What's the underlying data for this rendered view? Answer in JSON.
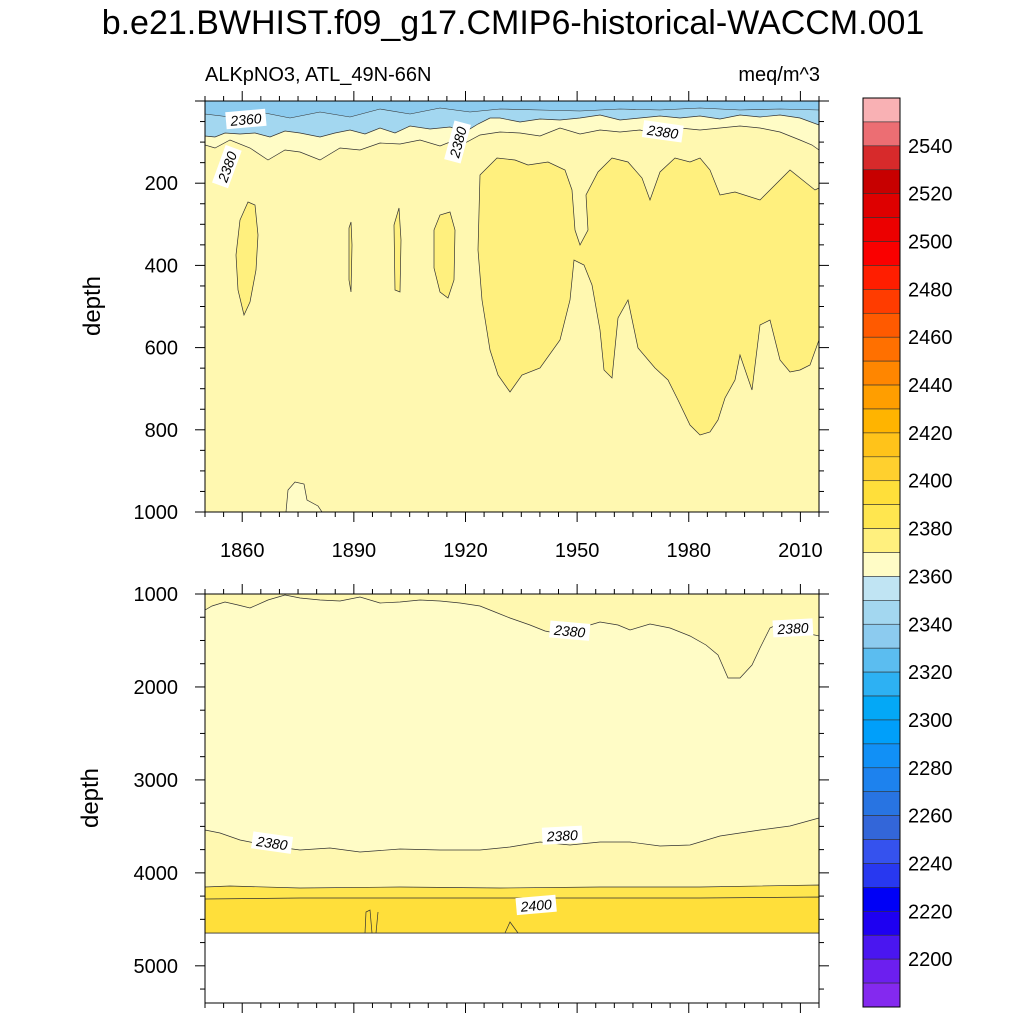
{
  "figure": {
    "title": "b.e21.BWHIST.f09_g17.CMIP6-historical-WACCM.001",
    "variable": "ALKpNO3, ATL_49N-66N",
    "units": "meq/m^3"
  },
  "chart_data": [
    {
      "type": "contour",
      "panel": "upper",
      "title": "ALKpNO3, ATL_49N-66N",
      "units": "meq/m^3",
      "xlabel": "",
      "ylabel": "depth",
      "xlim": [
        1850,
        2015
      ],
      "ylim": [
        1000,
        0
      ],
      "xticks": [
        1860,
        1890,
        1920,
        1950,
        1980,
        2010
      ],
      "yticks": [
        200,
        400,
        600,
        800,
        1000
      ],
      "contour_labels": [
        {
          "text": "2360",
          "x": 1861,
          "y": 45,
          "angle": -5
        },
        {
          "text": "2380",
          "x": 1856,
          "y": 160,
          "angle": -70
        },
        {
          "text": "2380",
          "x": 1918,
          "y": 100,
          "angle": -75
        },
        {
          "text": "2380",
          "x": 1973,
          "y": 75,
          "angle": 8
        }
      ],
      "regions": [
        {
          "level": "2360-2370",
          "description": "thin surface layer 0-60 m"
        },
        {
          "level": "2380-2390",
          "description": "bulk of 100-1000 m"
        },
        {
          "level": "2390-2400",
          "description": "patches 1925-1950 and 1956-2015, 200-800 m"
        }
      ]
    },
    {
      "type": "contour",
      "panel": "lower",
      "xlabel": "",
      "ylabel": "depth",
      "xlim": [
        1850,
        2015
      ],
      "ylim": [
        5400,
        1000
      ],
      "xticks": [
        1860,
        1890,
        1920,
        1950,
        1980,
        2010
      ],
      "yticks": [
        1000,
        2000,
        3000,
        4000,
        5000
      ],
      "contour_labels": [
        {
          "text": "2380",
          "x": 1948,
          "y": 1400,
          "angle": 5
        },
        {
          "text": "2380",
          "x": 2008,
          "y": 1370,
          "angle": -3
        },
        {
          "text": "2380",
          "x": 1868,
          "y": 3680,
          "angle": 8
        },
        {
          "text": "2380",
          "x": 1946,
          "y": 3600,
          "angle": -3
        },
        {
          "text": "2400",
          "x": 1939,
          "y": 4350,
          "angle": -5
        }
      ],
      "regions": [
        {
          "level": "2370-2380",
          "description": "1000-3700 m"
        },
        {
          "level": "2380-2390",
          "description": "3700-4150 m and near 1000 m"
        },
        {
          "level": "2400-2410",
          "description": "4250-4620 m"
        }
      ],
      "missing_below": 4620
    }
  ],
  "colorbar": {
    "labels": [
      "2540",
      "2520",
      "2500",
      "2480",
      "2460",
      "2440",
      "2420",
      "2400",
      "2380",
      "2360",
      "2340",
      "2320",
      "2300",
      "2280",
      "2260",
      "2240",
      "2220",
      "2200"
    ],
    "colors_top_to_bottom": [
      "#f9b1b4",
      "#ec6e73",
      "#d72a2b",
      "#c70000",
      "#de0000",
      "#ec0000",
      "#fa0000",
      "#ff1e00",
      "#ff3c00",
      "#ff5a00",
      "#ff7000",
      "#ff8600",
      "#ff9e00",
      "#ffb400",
      "#ffc31a",
      "#ffd02e",
      "#ffdf3a",
      "#ffe64f",
      "#fff07e",
      "#fffcc6",
      "#c0e4f3",
      "#a3d7f0",
      "#8ccbef",
      "#5bbdf0",
      "#2db1f3",
      "#04a8f6",
      "#009ffa",
      "#1190f6",
      "#1d82ee",
      "#2874e2",
      "#3366d9",
      "#3552ee",
      "#2838f0",
      "#0000f6",
      "#1e00f1",
      "#4a16f0",
      "#6c1fef",
      "#8429ef"
    ]
  }
}
